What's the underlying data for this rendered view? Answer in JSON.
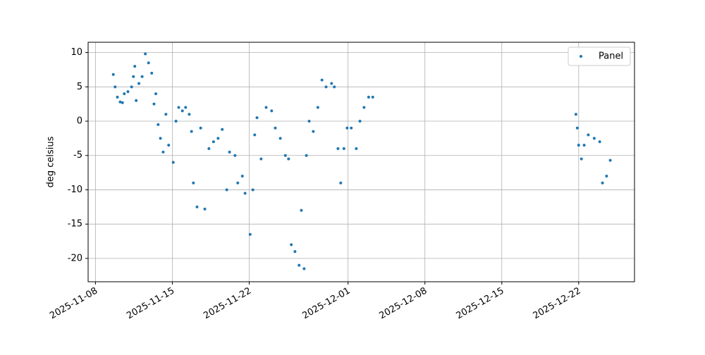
{
  "chart_data": {
    "type": "scatter",
    "ylabel": "deg celsius",
    "xlim": [
      "2025-11-07T08:00",
      "2025-12-27T02:00"
    ],
    "xticks": [
      "2025-11-08",
      "2025-11-15",
      "2025-11-22",
      "2025-12-01",
      "2025-12-08",
      "2025-12-15",
      "2025-12-22"
    ],
    "ylim": [
      -23.4,
      11.5
    ],
    "yticks": [
      10,
      5,
      0,
      -5,
      -10,
      -15,
      -20
    ],
    "grid": true,
    "legend": "upper right",
    "x": [
      "2025-11-09T15:00",
      "2025-11-09T19:00",
      "2025-11-10T00:00",
      "2025-11-10T06:00",
      "2025-11-10T11:00",
      "2025-11-10T15:00",
      "2025-11-10T23:00",
      "2025-11-11T07:00",
      "2025-11-11T11:00",
      "2025-11-11T14:00",
      "2025-11-11T17:00",
      "2025-11-11T23:00",
      "2025-11-12T06:00",
      "2025-11-12T13:00",
      "2025-11-12T20:00",
      "2025-11-13T03:00",
      "2025-11-13T08:00",
      "2025-11-13T12:00",
      "2025-11-13T17:00",
      "2025-11-13T22:00",
      "2025-11-14T04:00",
      "2025-11-14T10:00",
      "2025-11-14T16:00",
      "2025-11-15T02:00",
      "2025-11-15T08:00",
      "2025-11-15T14:00",
      "2025-11-15T22:00",
      "2025-11-16T05:00",
      "2025-11-16T13:00",
      "2025-11-16T18:00",
      "2025-11-16T22:00",
      "2025-11-17T06:00",
      "2025-11-17T14:00",
      "2025-11-17T23:00",
      "2025-11-18T08:00",
      "2025-11-18T18:00",
      "2025-11-19T04:00",
      "2025-11-19T13:00",
      "2025-11-19T23:00",
      "2025-11-20T05:00",
      "2025-11-20T17:00",
      "2025-11-20T23:00",
      "2025-11-21T09:00",
      "2025-11-21T15:00",
      "2025-11-22T02:00",
      "2025-11-22T08:00",
      "2025-11-22T12:00",
      "2025-11-22T17:00",
      "2025-11-23T02:00",
      "2025-11-23T13:00",
      "2025-11-24T01:00",
      "2025-11-24T09:00",
      "2025-11-24T20:00",
      "2025-11-25T07:00",
      "2025-11-25T14:00",
      "2025-11-25T20:00",
      "2025-11-26T04:00",
      "2025-11-26T13:00",
      "2025-11-26T18:00",
      "2025-11-27T00:00",
      "2025-11-27T05:00",
      "2025-11-27T11:00",
      "2025-11-27T20:00",
      "2025-11-28T06:00",
      "2025-11-28T15:00",
      "2025-11-29T00:00",
      "2025-11-29T12:00",
      "2025-11-29T18:00",
      "2025-11-30T02:00",
      "2025-11-30T08:00",
      "2025-11-30T15:00",
      "2025-11-30T22:00",
      "2025-12-01T07:00",
      "2025-12-01T18:00",
      "2025-12-02T02:00",
      "2025-12-02T11:00",
      "2025-12-02T21:00",
      "2025-12-03T06:00",
      "2025-12-21T18:00",
      "2025-12-21T21:00",
      "2025-12-22T00:00",
      "2025-12-22T06:00",
      "2025-12-22T12:00",
      "2025-12-22T21:00",
      "2025-12-23T10:00",
      "2025-12-23T22:00",
      "2025-12-24T04:00",
      "2025-12-24T13:00",
      "2025-12-24T21:00"
    ],
    "series": [
      {
        "name": "Panel",
        "color": "#1f77b4",
        "values": [
          6.8,
          5.0,
          3.5,
          2.8,
          2.7,
          4.0,
          4.3,
          5.0,
          6.5,
          8.0,
          3.0,
          5.5,
          6.5,
          9.8,
          8.5,
          7.0,
          2.5,
          4.0,
          -0.5,
          -2.5,
          -4.5,
          1.0,
          -3.5,
          -6.0,
          0.0,
          2.0,
          1.5,
          2.0,
          1.0,
          -1.5,
          -9.0,
          -12.5,
          -1.0,
          -12.8,
          -4.0,
          -3.0,
          -2.5,
          -1.2,
          -10.0,
          -4.5,
          -5.0,
          -9.0,
          -8.0,
          -10.5,
          -16.5,
          -10.0,
          -2.0,
          0.5,
          -5.5,
          2.0,
          1.5,
          -1.0,
          -2.5,
          -5.0,
          -5.5,
          -18.0,
          -19.0,
          -21.0,
          -13.0,
          -21.5,
          -5.0,
          0.0,
          -1.5,
          2.0,
          6.0,
          5.0,
          5.5,
          5.0,
          -4.0,
          -9.0,
          -4.0,
          -1.0,
          -1.0,
          -4.0,
          0.0,
          2.0,
          3.5,
          3.5,
          1.0,
          -1.0,
          -3.5,
          -5.5,
          -3.5,
          -2.0,
          -2.5,
          -3.0,
          -9.0,
          -8.0,
          -5.7
        ]
      }
    ]
  }
}
